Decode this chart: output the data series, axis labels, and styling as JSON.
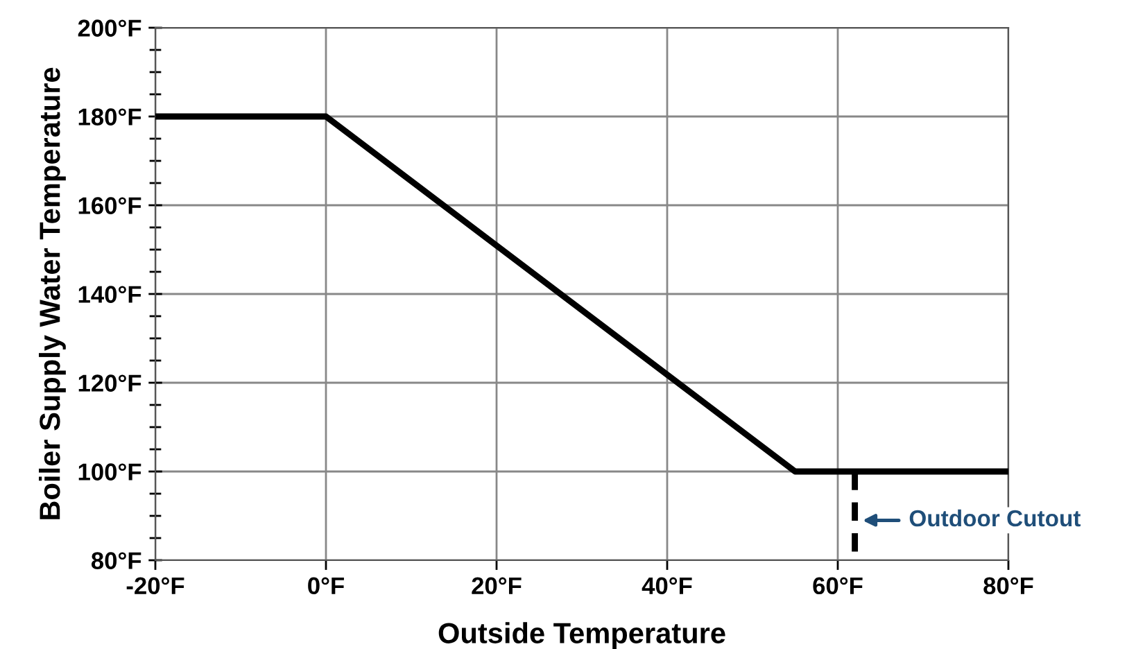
{
  "chart_data": {
    "type": "line",
    "xlabel": "Outside Temperature",
    "ylabel": "Boiler Supply Water Temperature",
    "series": [
      {
        "x": [
          -20,
          0,
          55,
          80
        ],
        "values": [
          180,
          180,
          100,
          100
        ],
        "color": "#000000",
        "line_style": "solid"
      },
      {
        "x": [
          62,
          62
        ],
        "values": [
          100,
          80
        ],
        "color": "#000000",
        "line_style": "dashed"
      }
    ],
    "annotations": [
      {
        "text": "Outdoor Cutout",
        "x": 62,
        "y": 89
      }
    ],
    "xlim": [
      -20,
      80
    ],
    "ylim": [
      80,
      200
    ],
    "xticks": [
      {
        "value": -20,
        "label": "-20°F"
      },
      {
        "value": 0,
        "label": "0°F"
      },
      {
        "value": 20,
        "label": "20°F"
      },
      {
        "value": 40,
        "label": "40°F"
      },
      {
        "value": 60,
        "label": "60°F"
      },
      {
        "value": 80,
        "label": "80°F"
      }
    ],
    "yticks": [
      {
        "value": 80,
        "label": "80°F"
      },
      {
        "value": 85,
        "label": null
      },
      {
        "value": 90,
        "label": null
      },
      {
        "value": 95,
        "label": null
      },
      {
        "value": 100,
        "label": "100°F"
      },
      {
        "value": 105,
        "label": null
      },
      {
        "value": 110,
        "label": null
      },
      {
        "value": 115,
        "label": null
      },
      {
        "value": 120,
        "label": "120°F"
      },
      {
        "value": 125,
        "label": null
      },
      {
        "value": 130,
        "label": null
      },
      {
        "value": 135,
        "label": null
      },
      {
        "value": 140,
        "label": "140°F"
      },
      {
        "value": 145,
        "label": null
      },
      {
        "value": 150,
        "label": null
      },
      {
        "value": 155,
        "label": null
      },
      {
        "value": 160,
        "label": "160°F"
      },
      {
        "value": 165,
        "label": null
      },
      {
        "value": 170,
        "label": null
      },
      {
        "value": 175,
        "label": null
      },
      {
        "value": 180,
        "label": "180°F"
      },
      {
        "value": 185,
        "label": null
      },
      {
        "value": 190,
        "label": null
      },
      {
        "value": 195,
        "label": null
      },
      {
        "value": 200,
        "label": "200°F"
      }
    ],
    "grid": true,
    "marker": "none"
  }
}
